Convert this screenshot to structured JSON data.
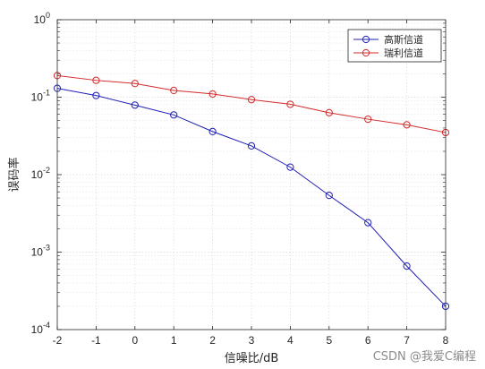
{
  "chart_data": {
    "type": "line",
    "title": "",
    "xlabel": "信噪比/dB",
    "ylabel": "误码率",
    "xlim": [
      -2,
      8
    ],
    "ylim": [
      0.0001,
      1
    ],
    "yscale": "log",
    "grid": true,
    "minor_grid": true,
    "legend_position": "top-right",
    "x": [
      -2,
      -1,
      0,
      1,
      2,
      3,
      4,
      5,
      6,
      7,
      8
    ],
    "x_tick_labels": [
      "-2",
      "-1",
      "0",
      "1",
      "2",
      "3",
      "4",
      "5",
      "6",
      "7",
      "8"
    ],
    "y_tick_labels": [
      {
        "value": 0.0001,
        "base": "10",
        "exp": "-4"
      },
      {
        "value": 0.001,
        "base": "10",
        "exp": "-3"
      },
      {
        "value": 0.01,
        "base": "10",
        "exp": "-2"
      },
      {
        "value": 0.1,
        "base": "10",
        "exp": "-1"
      },
      {
        "value": 1,
        "base": "10",
        "exp": "0"
      }
    ],
    "series": [
      {
        "name": "高斯信道",
        "color": "#1f1fb4",
        "marker": "circle",
        "values": [
          0.13,
          0.105,
          0.079,
          0.059,
          0.036,
          0.0235,
          0.0125,
          0.0054,
          0.0024,
          0.00066,
          0.0002
        ]
      },
      {
        "name": "瑞利信道",
        "color": "#d42a2a",
        "marker": "circle",
        "values": [
          0.19,
          0.165,
          0.15,
          0.122,
          0.11,
          0.093,
          0.081,
          0.063,
          0.052,
          0.044,
          0.035
        ]
      }
    ]
  },
  "watermark": "CSDN @我爱C编程"
}
